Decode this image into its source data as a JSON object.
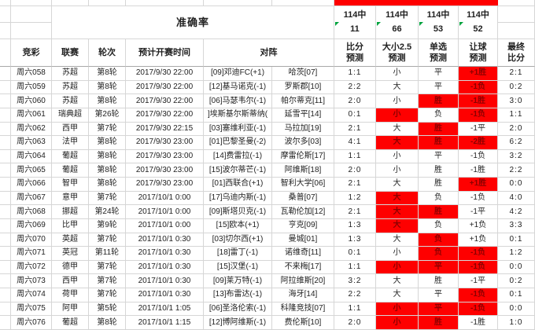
{
  "colors": {
    "highlight_bg": "#fe0000",
    "highlight_text": "#8b0000",
    "grid_line": "#d6d6d6",
    "marker_green": "#00a33d"
  },
  "accuracy": {
    "label": "准确率",
    "stats": [
      {
        "den": "114中",
        "num": "11"
      },
      {
        "den": "114中",
        "num": "66"
      },
      {
        "den": "114中",
        "num": "53"
      },
      {
        "den": "114中",
        "num": "52"
      }
    ]
  },
  "headers": {
    "jingcai": "竞彩",
    "league": "联赛",
    "round": "轮次",
    "time": "预计开赛时间",
    "matchup": "对阵",
    "score_pred_l1": "比分",
    "score_pred_l2": "预测",
    "ou_pred_l1": "大小2.5",
    "ou_pred_l2": "预测",
    "pick_pred_l1": "单选",
    "pick_pred_l2": "预测",
    "handicap_pred_l1": "让球",
    "handicap_pred_l2": "预测",
    "final_l1": "最终",
    "final_l2": "比分"
  },
  "rows": [
    {
      "id": "周六058",
      "league": "苏超",
      "round": "第8轮",
      "time": "2017/9/30 22:00",
      "home": "[09]邓迪FC(+1)",
      "away": "哈茨[07]",
      "score": "1:1",
      "ou": "小",
      "ou_hit": false,
      "pick": "平",
      "pick_hit": false,
      "handicap": "+1胜",
      "handicap_hit": true,
      "final": "2:1"
    },
    {
      "id": "周六059",
      "league": "苏超",
      "round": "第8轮",
      "time": "2017/9/30 22:00",
      "home": "[12]基马诺克(-1)",
      "away": "罗斯郡[10]",
      "score": "2:2",
      "ou": "大",
      "ou_hit": false,
      "pick": "平",
      "pick_hit": false,
      "handicap": "-1负",
      "handicap_hit": true,
      "final": "0:2"
    },
    {
      "id": "周六060",
      "league": "苏超",
      "round": "第8轮",
      "time": "2017/9/30 22:00",
      "home": "[06]马瑟韦尔(-1)",
      "away": "帕尔蒂克[11]",
      "score": "2:0",
      "ou": "小",
      "ou_hit": false,
      "pick": "胜",
      "pick_hit": true,
      "handicap": "-1胜",
      "handicap_hit": true,
      "final": "3:0"
    },
    {
      "id": "周六061",
      "league": "瑞典超",
      "round": "第26轮",
      "time": "2017/9/30 22:00",
      "home": "]埃斯基尔斯蒂纳(",
      "away": "延雪平[14]",
      "score": "0:1",
      "ou": "小",
      "ou_hit": true,
      "pick": "负",
      "pick_hit": false,
      "handicap": "-1负",
      "handicap_hit": true,
      "final": "1:1"
    },
    {
      "id": "周六062",
      "league": "西甲",
      "round": "第7轮",
      "time": "2017/9/30 22:15",
      "home": "[03]塞维利亚(-1)",
      "away": "马拉加[19]",
      "score": "2:1",
      "ou": "大",
      "ou_hit": false,
      "pick": "胜",
      "pick_hit": true,
      "handicap": "-1平",
      "handicap_hit": false,
      "final": "2:0"
    },
    {
      "id": "周六063",
      "league": "法甲",
      "round": "第8轮",
      "time": "2017/9/30 23:00",
      "home": "[01]巴黎圣曼(-2)",
      "away": "波尔多[03]",
      "score": "4:1",
      "ou": "大",
      "ou_hit": true,
      "pick": "胜",
      "pick_hit": true,
      "handicap": "-2胜",
      "handicap_hit": true,
      "final": "6:2"
    },
    {
      "id": "周六064",
      "league": "葡超",
      "round": "第8轮",
      "time": "2017/9/30 23:00",
      "home": "[14]费雷拉(-1)",
      "away": "摩雷伦斯[17]",
      "score": "1:1",
      "ou": "小",
      "ou_hit": false,
      "pick": "平",
      "pick_hit": false,
      "handicap": "-1负",
      "handicap_hit": false,
      "final": "3:2"
    },
    {
      "id": "周六065",
      "league": "葡超",
      "round": "第8轮",
      "time": "2017/9/30 23:00",
      "home": "[15]波尔蒂芒(-1)",
      "away": "阿维斯[18]",
      "score": "2:0",
      "ou": "小",
      "ou_hit": false,
      "pick": "胜",
      "pick_hit": false,
      "handicap": "-1胜",
      "handicap_hit": false,
      "final": "2:2"
    },
    {
      "id": "周六066",
      "league": "智甲",
      "round": "第8轮",
      "time": "2017/9/30 23:00",
      "home": "[01]西联合(+1)",
      "away": "智利大学[06]",
      "score": "2:1",
      "ou": "大",
      "ou_hit": false,
      "pick": "胜",
      "pick_hit": false,
      "handicap": "+1胜",
      "handicap_hit": true,
      "final": "0:0"
    },
    {
      "id": "周六067",
      "league": "意甲",
      "round": "第7轮",
      "time": "2017/10/1 0:00",
      "home": "[17]乌迪内斯(-1)",
      "away": "桑普[07]",
      "score": "1:2",
      "ou": "大",
      "ou_hit": true,
      "pick": "负",
      "pick_hit": false,
      "handicap": "-1负",
      "handicap_hit": false,
      "final": "4:0"
    },
    {
      "id": "周六068",
      "league": "挪超",
      "round": "第24轮",
      "time": "2017/10/1 0:00",
      "home": "[09]斯塔贝克(-1)",
      "away": "瓦勒伦加[12]",
      "score": "2:1",
      "ou": "大",
      "ou_hit": true,
      "pick": "胜",
      "pick_hit": true,
      "handicap": "-1平",
      "handicap_hit": false,
      "final": "4:2"
    },
    {
      "id": "周六069",
      "league": "比甲",
      "round": "第9轮",
      "time": "2017/10/1 0:00",
      "home": "[15]欧本(+1)",
      "away": "亨克[09]",
      "score": "1:3",
      "ou": "大",
      "ou_hit": true,
      "pick": "负",
      "pick_hit": false,
      "handicap": "+1负",
      "handicap_hit": false,
      "final": "3:3"
    },
    {
      "id": "周六070",
      "league": "英超",
      "round": "第7轮",
      "time": "2017/10/1 0:30",
      "home": "[03]切尔西(+1)",
      "away": "曼城[01]",
      "score": "1:3",
      "ou": "大",
      "ou_hit": false,
      "pick": "负",
      "pick_hit": true,
      "handicap": "+1负",
      "handicap_hit": false,
      "final": "0:1"
    },
    {
      "id": "周六071",
      "league": "英冠",
      "round": "第11轮",
      "time": "2017/10/1 0:30",
      "home": "[18]雷丁(-1)",
      "away": "诺维奇[11]",
      "score": "0:1",
      "ou": "小",
      "ou_hit": false,
      "pick": "负",
      "pick_hit": true,
      "handicap": "-1负",
      "handicap_hit": true,
      "final": "1:2"
    },
    {
      "id": "周六072",
      "league": "德甲",
      "round": "第7轮",
      "time": "2017/10/1 0:30",
      "home": "[15]汉堡(-1)",
      "away": "不来梅[17]",
      "score": "1:1",
      "ou": "小",
      "ou_hit": true,
      "pick": "平",
      "pick_hit": true,
      "handicap": "-1负",
      "handicap_hit": true,
      "final": "0:0"
    },
    {
      "id": "周六073",
      "league": "西甲",
      "round": "第7轮",
      "time": "2017/10/1 0:30",
      "home": "[09]莱万特(-1)",
      "away": "阿拉维斯[20]",
      "score": "3:2",
      "ou": "大",
      "ou_hit": false,
      "pick": "胜",
      "pick_hit": false,
      "handicap": "-1平",
      "handicap_hit": false,
      "final": "0:2"
    },
    {
      "id": "周六074",
      "league": "荷甲",
      "round": "第7轮",
      "time": "2017/10/1 0:30",
      "home": "[13]布雷达(-1)",
      "away": "海牙[14]",
      "score": "2:2",
      "ou": "大",
      "ou_hit": false,
      "pick": "平",
      "pick_hit": false,
      "handicap": "-1负",
      "handicap_hit": true,
      "final": "0:1"
    },
    {
      "id": "周六075",
      "league": "阿甲",
      "round": "第5轮",
      "time": "2017/10/1 1:05",
      "home": "[06]圣洛伦索(-1)",
      "away": "科隆竞技[07]",
      "score": "1:1",
      "ou": "小",
      "ou_hit": true,
      "pick": "平",
      "pick_hit": true,
      "handicap": "-1负",
      "handicap_hit": true,
      "final": "0:0"
    },
    {
      "id": "周六076",
      "league": "葡超",
      "round": "第8轮",
      "time": "2017/10/1 1:15",
      "home": "[12]博阿维斯(-1)",
      "away": "费伦斯[10]",
      "score": "2:0",
      "ou": "小",
      "ou_hit": true,
      "pick": "胜",
      "pick_hit": true,
      "handicap": "-1胜",
      "handicap_hit": false,
      "final": "1:0"
    }
  ]
}
